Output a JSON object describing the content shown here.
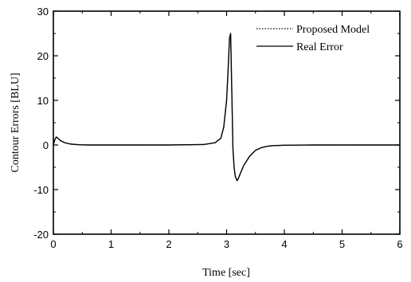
{
  "chart_data": {
    "type": "line",
    "xlabel": "Time [sec]",
    "ylabel": "Contour Errors [BLU]",
    "xlim": [
      0,
      6
    ],
    "ylim": [
      -20,
      30
    ],
    "xticks": [
      0,
      1,
      2,
      3,
      4,
      5,
      6
    ],
    "yticks": [
      -20,
      -10,
      0,
      10,
      20,
      30
    ],
    "xtick_labels": [
      "0",
      "1",
      "2",
      "3",
      "4",
      "5",
      "6"
    ],
    "ytick_labels": [
      "-20",
      "-10",
      "0",
      "10",
      "20",
      "30"
    ],
    "grid": false,
    "legend_position": "top-right",
    "series": [
      {
        "name": "Proposed Model",
        "style": "dotted",
        "color": "#000000",
        "x": [
          0,
          0.02,
          0.05,
          0.08,
          0.12,
          0.2,
          0.3,
          0.45,
          0.6,
          1.0,
          2.0,
          2.6,
          2.8,
          2.9,
          2.95,
          3.0,
          3.03,
          3.05,
          3.07,
          3.09,
          3.11,
          3.13,
          3.15,
          3.18,
          3.2,
          3.25,
          3.3,
          3.4,
          3.5,
          3.6,
          3.7,
          3.8,
          4.0,
          4.5,
          5.0,
          6.0
        ],
        "y": [
          0,
          1.0,
          1.8,
          1.5,
          1.0,
          0.5,
          0.2,
          0.05,
          0,
          0,
          0,
          0.1,
          0.5,
          1.5,
          4.0,
          10.0,
          18.0,
          24.0,
          25.0,
          12.0,
          -1.0,
          -5.0,
          -7.0,
          -8.0,
          -7.6,
          -6.0,
          -4.5,
          -2.5,
          -1.2,
          -0.6,
          -0.3,
          -0.15,
          -0.05,
          0,
          0,
          0
        ]
      },
      {
        "name": "Real Error",
        "style": "solid",
        "color": "#000000",
        "x": [
          0,
          0.02,
          0.05,
          0.08,
          0.12,
          0.2,
          0.3,
          0.45,
          0.6,
          1.0,
          2.0,
          2.6,
          2.8,
          2.9,
          2.95,
          3.0,
          3.03,
          3.05,
          3.07,
          3.09,
          3.11,
          3.13,
          3.15,
          3.18,
          3.2,
          3.25,
          3.3,
          3.4,
          3.5,
          3.6,
          3.7,
          3.8,
          4.0,
          4.5,
          5.0,
          6.0
        ],
        "y": [
          0,
          1.0,
          1.8,
          1.5,
          1.0,
          0.5,
          0.2,
          0.05,
          0,
          0,
          0,
          0.1,
          0.5,
          1.5,
          4.0,
          10.0,
          18.0,
          24.0,
          25.0,
          12.0,
          -1.0,
          -5.0,
          -7.0,
          -8.0,
          -7.6,
          -6.0,
          -4.5,
          -2.5,
          -1.2,
          -0.6,
          -0.3,
          -0.15,
          -0.05,
          0,
          0,
          0
        ]
      }
    ]
  }
}
